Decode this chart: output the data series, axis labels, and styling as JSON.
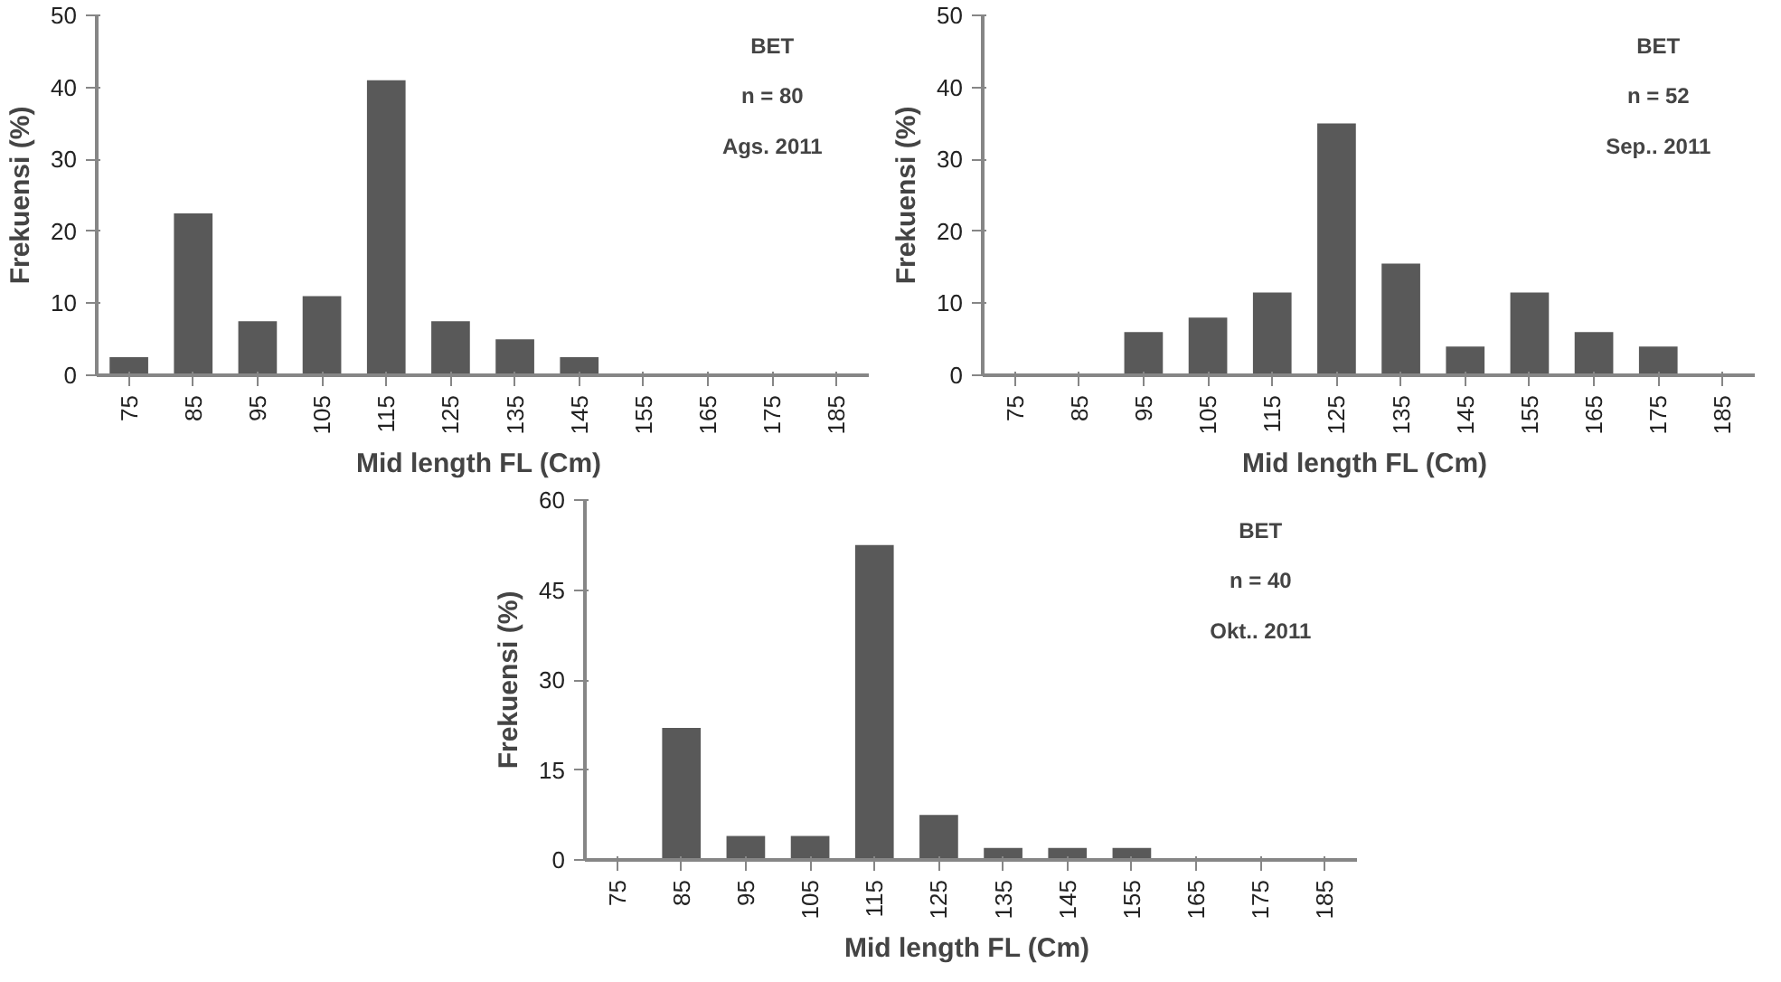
{
  "chart_data": [
    {
      "type": "bar",
      "xlabel": "Mid length  FL (Cm)",
      "ylabel": "Frekuensi (%)",
      "annotations": [
        "BET",
        "n = 80",
        "Ags. 2011"
      ],
      "categories": [
        "75",
        "85",
        "95",
        "105",
        "115",
        "125",
        "135",
        "145",
        "155",
        "165",
        "175",
        "185"
      ],
      "values": [
        2.5,
        22.5,
        7.5,
        11,
        41,
        7.5,
        5,
        2.5,
        0,
        0,
        0,
        0
      ],
      "color": "#595959",
      "ylim": [
        0,
        50
      ],
      "yticks": [
        0,
        10,
        20,
        30,
        40,
        50
      ],
      "grid": false
    },
    {
      "type": "bar",
      "xlabel": "Mid length  FL (Cm)",
      "ylabel": "Frekuensi (%)",
      "annotations": [
        "BET",
        "n = 52",
        "Sep.. 2011"
      ],
      "categories": [
        "75",
        "85",
        "95",
        "105",
        "115",
        "125",
        "135",
        "145",
        "155",
        "165",
        "175",
        "185"
      ],
      "values": [
        0,
        0,
        6,
        8,
        11.5,
        35,
        15.5,
        4,
        11.5,
        6,
        4,
        0
      ],
      "color": "#595959",
      "ylim": [
        0,
        50
      ],
      "yticks": [
        0,
        10,
        20,
        30,
        40,
        50
      ],
      "grid": false
    },
    {
      "type": "bar",
      "xlabel": "Mid length  FL (Cm)",
      "ylabel": "Frekuensi (%)",
      "annotations": [
        "BET",
        "n = 40",
        "Okt.. 2011"
      ],
      "categories": [
        "75",
        "85",
        "95",
        "105",
        "115",
        "125",
        "135",
        "145",
        "155",
        "165",
        "175",
        "185"
      ],
      "values": [
        0,
        22,
        4,
        4,
        52.5,
        7.5,
        2,
        2,
        2,
        0,
        0,
        0
      ],
      "color": "#595959",
      "ylim": [
        0,
        60
      ],
      "yticks": [
        0,
        15,
        30,
        45,
        60
      ],
      "grid": false
    }
  ]
}
